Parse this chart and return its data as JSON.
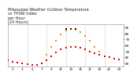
{
  "title": "Milwaukee Weather Outdoor Temperature\nvs THSW Index\nper Hour\n(24 Hours)",
  "title_fontsize": 3.5,
  "background_color": "#ffffff",
  "grid_color": "#bbbbbb",
  "ylim": [
    25,
    95
  ],
  "yticks": [
    30,
    40,
    50,
    60,
    70,
    80,
    90
  ],
  "temp_x": [
    0,
    1,
    2,
    3,
    4,
    5,
    6,
    7,
    8,
    9,
    10,
    11,
    12,
    13,
    14,
    15,
    16,
    17,
    18,
    19,
    20,
    21,
    22,
    23
  ],
  "temp_y": [
    35,
    33,
    31,
    30,
    29,
    28,
    28,
    30,
    35,
    42,
    48,
    53,
    56,
    58,
    57,
    56,
    54,
    50,
    47,
    44,
    42,
    40,
    38,
    36
  ],
  "thsw_x": [
    8,
    9,
    10,
    11,
    12,
    13,
    14,
    15,
    16,
    17,
    18,
    19
  ],
  "thsw_y": [
    45,
    58,
    68,
    78,
    85,
    88,
    86,
    82,
    76,
    68,
    58,
    50
  ],
  "temp_color": "#dd0000",
  "thsw_color": "#ff8800",
  "black_color": "#111111",
  "dot_size": 2.5,
  "tick_fontsize": 3.0,
  "vgrid_x": [
    4,
    8,
    12,
    16,
    20,
    24
  ],
  "xtick_positions": [
    1,
    3,
    5,
    7,
    9,
    11,
    13,
    15,
    17,
    19,
    21,
    23
  ],
  "xtick_labels": [
    "1",
    "3",
    "5",
    "7",
    "9",
    "11",
    "13",
    "15",
    "17",
    "19",
    "21",
    "23"
  ]
}
